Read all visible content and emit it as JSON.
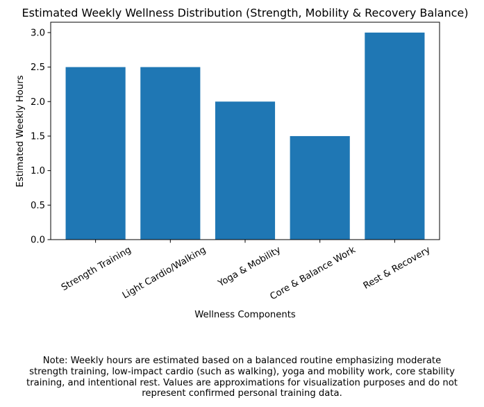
{
  "chart_data": {
    "type": "bar",
    "title": "Estimated Weekly Wellness Distribution (Strength, Mobility & Recovery Balance)",
    "xlabel": "Wellness Components",
    "ylabel": "Estimated Weekly Hours",
    "categories": [
      "Strength Training",
      "Light Cardio/Walking",
      "Yoga & Mobility",
      "Core & Balance Work",
      "Rest & Recovery"
    ],
    "values": [
      2.5,
      2.5,
      2.0,
      1.5,
      3.0
    ],
    "ylim": [
      0,
      3.15
    ],
    "yticks": [
      0.0,
      0.5,
      1.0,
      1.5,
      2.0,
      2.5,
      3.0
    ],
    "ytick_labels": [
      "0.0",
      "0.5",
      "1.0",
      "1.5",
      "2.0",
      "2.5",
      "3.0"
    ],
    "bar_color": "#1f77b4",
    "grid": false,
    "legend": "none"
  },
  "note": {
    "lines": [
      "Note: Weekly hours are estimated based on a balanced routine emphasizing moderate",
      "strength training, low-impact cardio (such as walking), yoga and mobility work, core stability",
      "training, and intentional rest. Values are approximations for visualization purposes and do not",
      "represent confirmed personal training data."
    ]
  }
}
